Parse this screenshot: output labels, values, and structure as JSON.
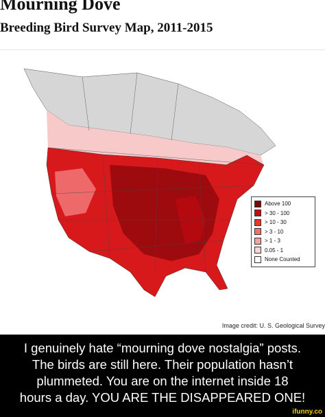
{
  "header": {
    "title": "Mourning Dove",
    "subtitle": "Breeding Bird Survey Map, 2011-2015"
  },
  "legend": [
    "Above 100",
    "> 30 - 100",
    "> 10 - 30",
    "> 3 - 10",
    "> 1 - 3",
    "0.05 - 1",
    "None Counted"
  ],
  "credit": "Image credit: U. S. Geological Survey",
  "caption": [
    "I genuinely hate “mourning dove nostalgia” posts.",
    "The birds are still here. Their population hasn’t",
    "plummeted. You are on the internet inside 18",
    "hours a day. YOU ARE THE DISAPPEARED ONE!",
    ""
  ],
  "watermark": "ifunny.co"
}
